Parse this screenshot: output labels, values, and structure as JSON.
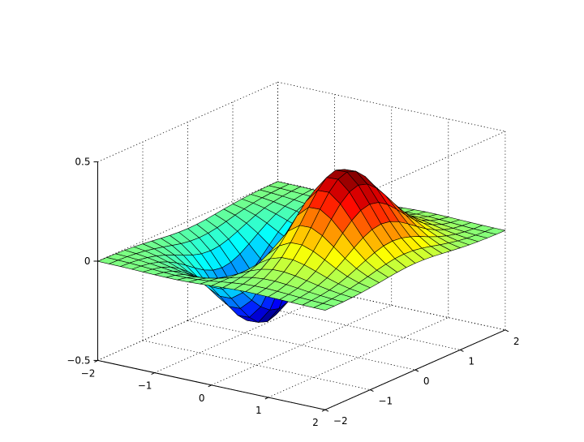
{
  "chart_data": {
    "type": "surface",
    "title": "",
    "xlabel": "",
    "ylabel": "",
    "zlabel": "",
    "function": "z = x * exp(-x^2 - y^2)",
    "x_range": [
      -2,
      2
    ],
    "y_range": [
      -2,
      2
    ],
    "mesh_points_per_axis": 21,
    "zlim": [
      -0.5,
      0.5
    ],
    "z_peak": 0.429,
    "z_trough": -0.429,
    "colormap": "jet",
    "grid": true,
    "view": {
      "azimuth": -37.5,
      "elevation": 30
    },
    "x_ticks": [
      "−2",
      "−1",
      "0",
      "1",
      "2"
    ],
    "y_ticks": [
      "−2",
      "−1",
      "0",
      "1",
      "2"
    ],
    "z_ticks": [
      "−0.5",
      "0",
      "0.5"
    ],
    "colors": {
      "background": "#ffffff",
      "mesh_edge": "#000000",
      "grid": "#000000"
    }
  }
}
